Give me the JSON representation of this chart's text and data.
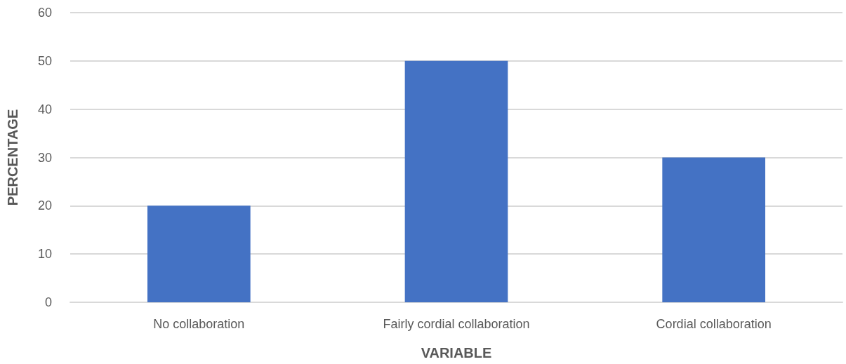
{
  "chart_data": {
    "type": "bar",
    "xlabel": "VARIABLE",
    "ylabel": "PERCENTAGE",
    "categories": [
      "No collaboration",
      "Fairly cordial collaboration",
      "Cordial collaboration"
    ],
    "values": [
      20,
      50,
      30
    ],
    "color": "#4472c4",
    "ylim": [
      0,
      60
    ],
    "yticks": [
      0,
      10,
      20,
      30,
      40,
      50,
      60
    ],
    "grid": "y"
  }
}
